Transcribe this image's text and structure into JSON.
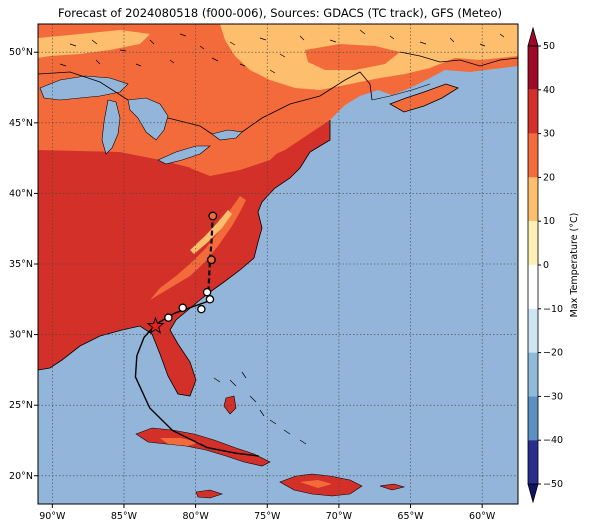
{
  "title": "Forecast of 2024080518 (f000-006), Sources: GDACS (TC track), GFS (Meteo)",
  "map": {
    "lon_range": [
      -91,
      -57.5
    ],
    "lat_range": [
      18,
      52
    ],
    "lon_ticks": [
      -90,
      -85,
      -80,
      -75,
      -70,
      -65,
      -60
    ],
    "lon_tick_labels": [
      "90°W",
      "85°W",
      "80°W",
      "75°W",
      "70°W",
      "65°W",
      "60°W"
    ],
    "lat_ticks": [
      20,
      25,
      30,
      35,
      40,
      45,
      50
    ],
    "lat_tick_labels": [
      "20°N",
      "25°N",
      "30°N",
      "35°N",
      "40°N",
      "45°N",
      "50°N"
    ],
    "ocean_color": "#92b5d9",
    "gridlines": true
  },
  "colorbar": {
    "label": "Max Temperature (°C)",
    "ticks": [
      -50,
      -40,
      -30,
      -20,
      -10,
      0,
      10,
      20,
      30,
      40,
      50
    ],
    "tick_labels": [
      "−50",
      "−40",
      "−30",
      "−20",
      "−10",
      "0",
      "10",
      "20",
      "30",
      "40",
      "50"
    ],
    "colors": [
      "#2a2c8e",
      "#3b63a8",
      "#5b90c2",
      "#8ebbd9",
      "#cde6f1",
      "#ffffff",
      "#fff1b6",
      "#fdbe6e",
      "#f36b3b",
      "#d3302a",
      "#9e0a26"
    ]
  },
  "track": {
    "path": [
      [
        -78.8,
        38.5
      ],
      [
        -78.9,
        36.4
      ],
      [
        -79.0,
        35.3
      ],
      [
        -79.1,
        33.2
      ],
      [
        -79.0,
        32.4
      ],
      [
        -80.4,
        31.9
      ],
      [
        -81.5,
        31.5
      ],
      [
        -82.0,
        31.2
      ],
      [
        -82.8,
        30.7
      ],
      [
        -83.6,
        29.8
      ],
      [
        -84.1,
        28.5
      ],
      [
        -84.2,
        27.0
      ],
      [
        -83.2,
        24.8
      ],
      [
        -81.6,
        23.2
      ],
      [
        -79.2,
        22.0
      ],
      [
        -77.2,
        21.6
      ],
      [
        -75.6,
        21.4
      ]
    ],
    "past_points": [
      [
        -79.0,
        32.5
      ],
      [
        -79.2,
        33.0
      ],
      [
        -79.6,
        31.8
      ],
      [
        -80.9,
        31.9
      ],
      [
        -81.9,
        31.2
      ]
    ],
    "forecast_points": [
      [
        -78.9,
        35.3
      ],
      [
        -78.8,
        38.4
      ]
    ],
    "current_position": [
      -82.8,
      30.6
    ]
  }
}
